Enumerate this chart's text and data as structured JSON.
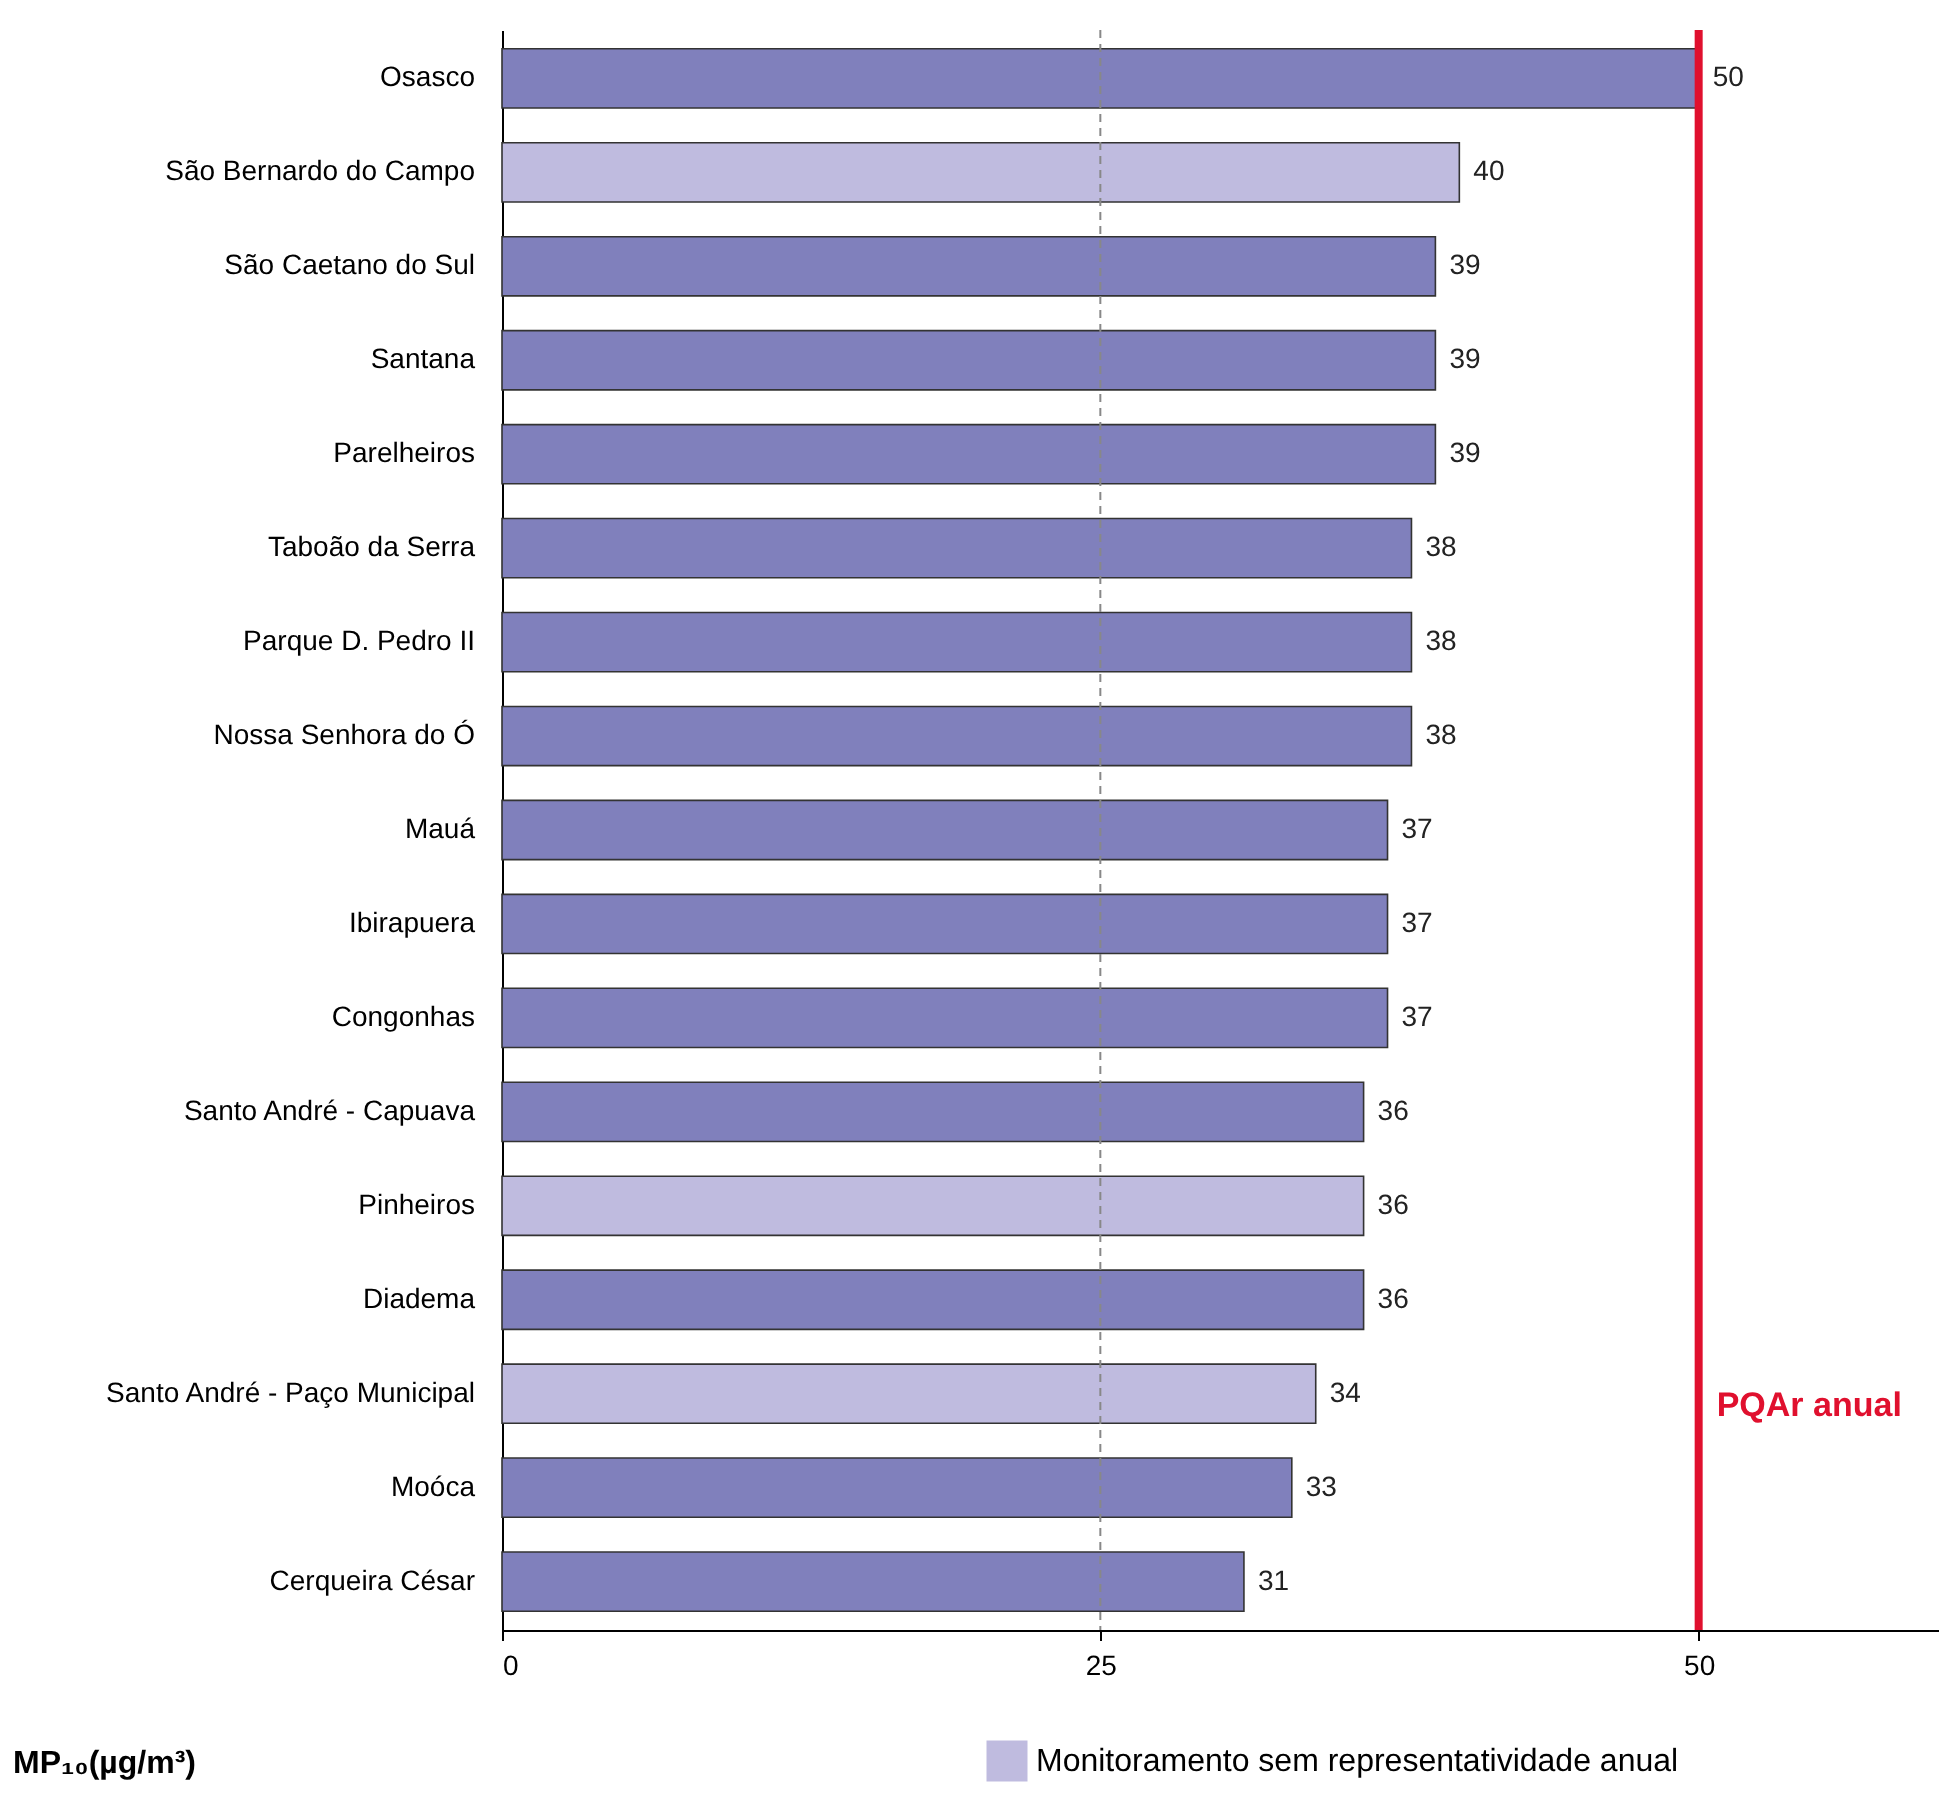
{
  "chart_data": {
    "type": "bar",
    "orientation": "horizontal",
    "categories": [
      "Osasco",
      "São Bernardo do Campo",
      "São Caetano do Sul",
      "Santana",
      "Parelheiros",
      "Taboão da Serra",
      "Parque D. Pedro II",
      "Nossa Senhora do Ó",
      "Mauá",
      "Ibirapuera",
      "Congonhas",
      "Santo André - Capuava",
      "Pinheiros",
      "Diadema",
      "Santo André - Paço Municipal",
      "Moóca",
      "Cerqueira César"
    ],
    "series": [
      {
        "color": "#8080bc",
        "values": [
          50,
          null,
          39,
          39,
          39,
          38,
          38,
          38,
          37,
          37,
          37,
          36,
          null,
          36,
          null,
          33,
          31
        ]
      },
      {
        "name": "Monitoramento sem representatividade anual",
        "color": "#bfbbdf",
        "values": [
          null,
          40,
          null,
          null,
          null,
          null,
          null,
          null,
          null,
          null,
          null,
          null,
          36,
          null,
          34,
          null,
          null
        ]
      }
    ],
    "xlim": [
      0,
      60
    ],
    "xticks": [
      0,
      25,
      50
    ],
    "xlabel": "MP₁₀(µg/m³)",
    "data_labels": true,
    "legend": "bottom",
    "ref_lines": [
      {
        "axis": "x",
        "value": 25,
        "color": "#888888",
        "line_style": "dashed"
      },
      {
        "axis": "x",
        "value": 50,
        "label": "PQAr anual",
        "color": "#e0102e"
      }
    ]
  }
}
